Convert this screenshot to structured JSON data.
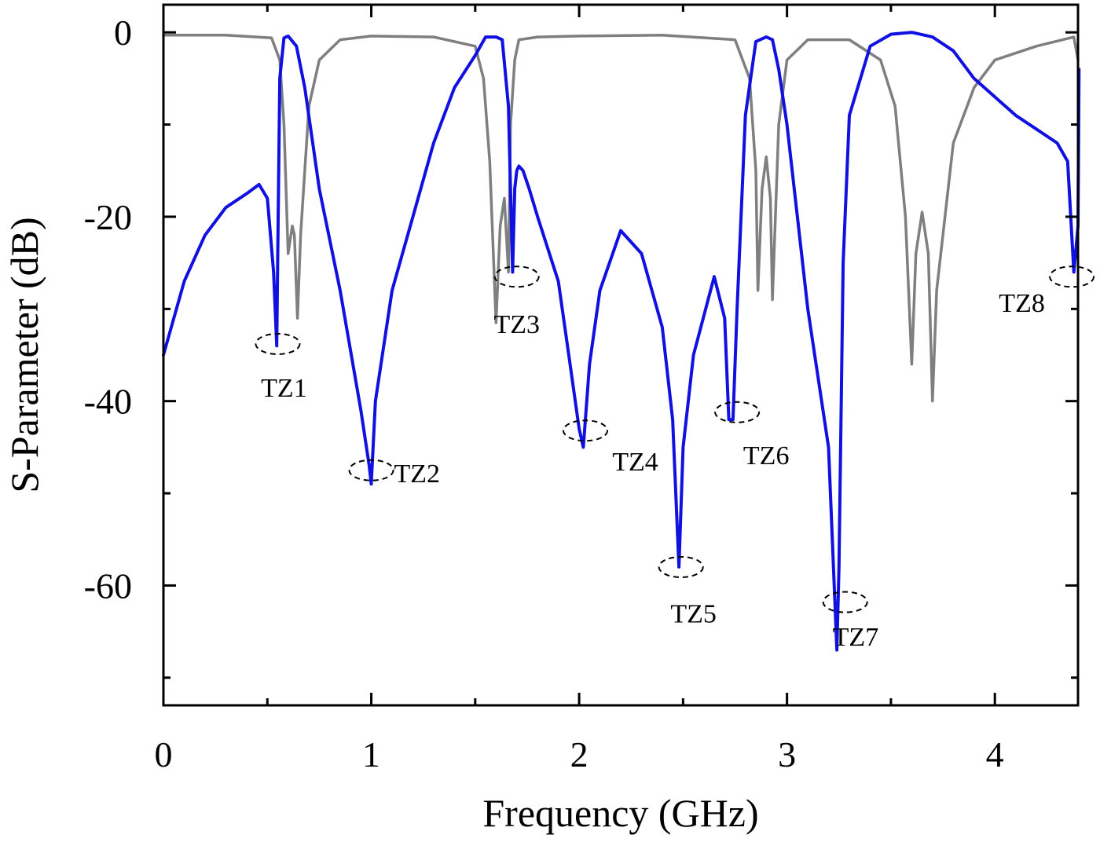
{
  "chart_data": {
    "type": "line",
    "title": "",
    "xlabel": "Frequency (GHz)",
    "ylabel": "S-Parameter (dB)",
    "xlim": [
      0,
      4.4
    ],
    "ylim": [
      -73,
      3
    ],
    "xticks": [
      0,
      1,
      2,
      3,
      4
    ],
    "xtick_labels": [
      "0",
      "1",
      "2",
      "3",
      "4"
    ],
    "xminor": [
      0.5,
      1.5,
      2.5,
      3.5
    ],
    "yticks": [
      0,
      -20,
      -40,
      -60
    ],
    "ytick_labels": [
      "0",
      "-20",
      "-40",
      "-60"
    ],
    "yminor": [
      -10,
      -30,
      -50,
      -70
    ],
    "grid": false,
    "series": [
      {
        "color": "#7f7f7f",
        "x": [
          0,
          0.3,
          0.52,
          0.56,
          0.58,
          0.6,
          0.62,
          0.63,
          0.645,
          0.66,
          0.7,
          0.75,
          0.85,
          1.0,
          1.3,
          1.5,
          1.54,
          1.57,
          1.6,
          1.62,
          1.64,
          1.66,
          1.67,
          1.69,
          1.71,
          1.8,
          2.0,
          2.4,
          2.75,
          2.82,
          2.85,
          2.86,
          2.88,
          2.9,
          2.92,
          2.93,
          2.96,
          3.0,
          3.1,
          3.3,
          3.45,
          3.52,
          3.57,
          3.6,
          3.62,
          3.65,
          3.68,
          3.7,
          3.72,
          3.8,
          3.9,
          4.0,
          4.2,
          4.38,
          4.4
        ],
        "y": [
          -0.3,
          -0.3,
          -0.6,
          -3,
          -10,
          -24,
          -21,
          -22,
          -31,
          -22,
          -8,
          -3,
          -0.8,
          -0.4,
          -0.5,
          -1.5,
          -5,
          -14,
          -31.5,
          -21,
          -18,
          -26,
          -10,
          -3,
          -0.8,
          -0.5,
          -0.4,
          -0.3,
          -0.8,
          -5,
          -15,
          -28,
          -17,
          -13.5,
          -18,
          -29,
          -10,
          -3,
          -0.8,
          -0.8,
          -3,
          -8,
          -20,
          -36,
          -24,
          -19.5,
          -24,
          -40,
          -28,
          -12,
          -6,
          -3,
          -1.5,
          -0.5,
          -3
        ]
      },
      {
        "color": "#1010e0",
        "x": [
          0,
          0.1,
          0.2,
          0.3,
          0.4,
          0.46,
          0.5,
          0.53,
          0.545,
          0.55,
          0.56,
          0.58,
          0.6,
          0.64,
          0.68,
          0.75,
          0.85,
          0.95,
          0.99,
          1.0,
          1.02,
          1.1,
          1.2,
          1.3,
          1.4,
          1.5,
          1.55,
          1.6,
          1.63,
          1.66,
          1.68,
          1.69,
          1.7,
          1.71,
          1.73,
          1.76,
          1.8,
          1.9,
          1.95,
          2.0,
          2.02,
          2.05,
          2.1,
          2.2,
          2.3,
          2.4,
          2.45,
          2.48,
          2.5,
          2.55,
          2.65,
          2.7,
          2.72,
          2.74,
          2.76,
          2.8,
          2.85,
          2.9,
          2.93,
          2.96,
          3.0,
          3.1,
          3.2,
          3.24,
          3.25,
          3.27,
          3.3,
          3.4,
          3.5,
          3.6,
          3.7,
          3.8,
          3.9,
          4.0,
          4.1,
          4.2,
          4.3,
          4.35,
          4.38,
          4.4,
          4.405
        ],
        "y": [
          -35,
          -27,
          -22,
          -19,
          -17.5,
          -16.5,
          -18,
          -26,
          -34,
          -24,
          -5,
          -0.6,
          -0.4,
          -1.5,
          -6,
          -17,
          -28,
          -41,
          -47,
          -49,
          -40,
          -28,
          -20,
          -12,
          -6,
          -2.5,
          -0.5,
          -0.5,
          -0.8,
          -8,
          -26,
          -17,
          -15,
          -14.5,
          -15,
          -17,
          -20,
          -27,
          -35,
          -43,
          -45,
          -36,
          -28,
          -21.5,
          -24,
          -32,
          -42,
          -58,
          -45,
          -35,
          -26.5,
          -31,
          -42,
          -42,
          -30,
          -9,
          -1,
          -0.5,
          -0.8,
          -4,
          -10,
          -30,
          -45,
          -67,
          -58,
          -25,
          -9,
          -1.5,
          -0.2,
          0,
          -0.5,
          -2,
          -5,
          -7,
          -9,
          -10.5,
          -12,
          -14,
          -26,
          -21,
          -4
        ]
      }
    ],
    "annotations": [
      {
        "text": "TZ1",
        "x": 0.55,
        "y": -33.8,
        "tx": 0.58,
        "ty": -38.5
      },
      {
        "text": "TZ2",
        "x": 1.0,
        "y": -47.5,
        "tx": 1.22,
        "ty": -47.8
      },
      {
        "text": "TZ3",
        "x": 1.7,
        "y": -26.5,
        "tx": 1.7,
        "ty": -31.6
      },
      {
        "text": "TZ4",
        "x": 2.03,
        "y": -43.2,
        "tx": 2.27,
        "ty": -46.5
      },
      {
        "text": "TZ5",
        "x": 2.49,
        "y": -58,
        "tx": 2.55,
        "ty": -63
      },
      {
        "text": "TZ6",
        "x": 2.76,
        "y": -41.2,
        "tx": 2.9,
        "ty": -45.8
      },
      {
        "text": "TZ7",
        "x": 3.28,
        "y": -61.8,
        "tx": 3.33,
        "ty": -65.5
      },
      {
        "text": "TZ8",
        "x": 4.37,
        "y": -26.5,
        "tx": 4.13,
        "ty": -29.3
      }
    ]
  }
}
